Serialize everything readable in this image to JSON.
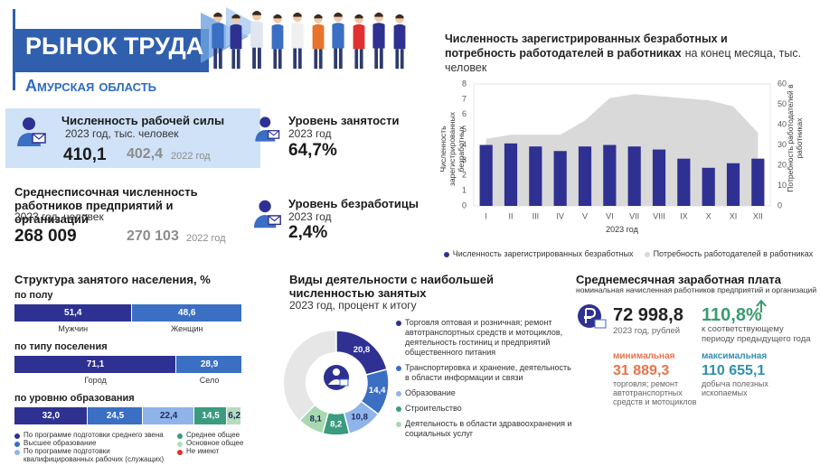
{
  "header": {
    "title": "РЫНОК ТРУДА",
    "region": "Амурская область"
  },
  "indicators": [
    {
      "title": "Численность рабочей силы",
      "subtitle": "2023 год, тыс. человек",
      "value": "410,1",
      "previous": "402,4",
      "previous_label": "2022 год"
    },
    {
      "title": "Уровень занятости",
      "subtitle": "2023 год",
      "value": "64,7%"
    },
    {
      "title": "Среднесписочная численность работников предприятий и организаций",
      "subtitle": "2023 год, человек",
      "value": "268 009",
      "previous": "270 103",
      "previous_label": "2022 год"
    },
    {
      "title": "Уровень безработицы",
      "subtitle": "2023 год",
      "value": "2,4%"
    }
  ],
  "chart_data": [
    {
      "type": "bar",
      "title": "Численность зарегистрированных безработных и потребность работодателей в работниках",
      "subtitle": "на конец месяца, тыс. человек",
      "categories": [
        "I",
        "II",
        "III",
        "IV",
        "V",
        "VI",
        "VII",
        "VIII",
        "IX",
        "X",
        "XI",
        "XII"
      ],
      "xlabel": "2023 год",
      "ylabel": "Численность зарегистрированных безработных",
      "y2label": "Потребность работодателей в работниках",
      "ylim": [
        0,
        8
      ],
      "yticks": [
        0,
        1,
        2,
        3,
        4,
        5,
        6,
        7,
        8
      ],
      "y2lim": [
        0,
        60
      ],
      "y2ticks": [
        0,
        10,
        20,
        30,
        40,
        50,
        60
      ],
      "series": [
        {
          "name": "Численность зарегистрированных безработных",
          "type": "bar",
          "color": "#2e3192",
          "values": [
            4.0,
            4.1,
            3.9,
            3.6,
            3.9,
            4.0,
            3.9,
            3.7,
            3.1,
            2.5,
            2.8,
            3.1
          ]
        },
        {
          "name": "Потребность работодателей в работниках",
          "type": "area",
          "axis": "y2",
          "color": "#d9d9d9",
          "values": [
            33,
            35,
            35,
            35,
            42,
            53,
            55,
            54,
            53,
            52,
            49,
            36
          ]
        }
      ],
      "legend": "bottom"
    },
    {
      "type": "stacked-bar",
      "orientation": "horizontal",
      "title": "Структура занятого населения, %",
      "groups": [
        {
          "label": "по полу",
          "categories": [
            "Мужчин",
            "Женщин"
          ],
          "values": [
            51.4,
            48.6
          ],
          "value_labels": [
            "51,4",
            "48,6"
          ],
          "colors": [
            "#2e3192",
            "#3a6fc4"
          ]
        },
        {
          "label": "по типу поселения",
          "categories": [
            "Город",
            "Село"
          ],
          "values": [
            71.1,
            28.9
          ],
          "value_labels": [
            "71,1",
            "28,9"
          ],
          "colors": [
            "#2e3192",
            "#3a6fc4"
          ]
        },
        {
          "label": "по уровню образования",
          "categories": [
            "По программе подготовки среднего звена",
            "Высшее образование",
            "По программе подготовки квалифицированных рабочих (служащих)",
            "Среднее общее",
            "Основное общее",
            "Не имеют"
          ],
          "values": [
            32.0,
            24.5,
            22.4,
            14.5,
            6.2,
            0.4
          ],
          "value_labels": [
            "32,0",
            "24,5",
            "22,4",
            "14,5",
            "6,2",
            null
          ],
          "colors": [
            "#2e3192",
            "#3a6fc4",
            "#8fb4ea",
            "#3b9b7f",
            "#b5dcbf",
            "#e03030"
          ],
          "legend": "bottom"
        }
      ]
    },
    {
      "type": "donut",
      "title": "Виды деятельности с наибольшей численностью занятых",
      "subtitle": "2023 год, процент к итогу",
      "categories": [
        "Торговля оптовая и розничная; ремонт автотранспортных средств и мотоциклов, деятельность гостиниц и предприятий общественного питания",
        "Транспортировка и хранение, деятельность в области информации и связи",
        "Образование",
        "Строительство",
        "Деятельность в области здравоохранения и социальных услуг"
      ],
      "values": [
        20.8,
        14.4,
        10.8,
        8.2,
        8.1
      ],
      "value_labels": [
        "20,8",
        "14,4",
        "10,8",
        "8,2",
        "8,1"
      ],
      "colors": [
        "#2e3192",
        "#3a6fc4",
        "#8fb4ea",
        "#3b9b7f",
        "#a8d8b0"
      ]
    }
  ],
  "salary": {
    "title": "Среднемесячная заработная плата",
    "subtitle": "номинальная начисленная работников предприятий и организаций",
    "value": "72 998,8",
    "value_note": "2023 год, рублей",
    "growth": "110,8%",
    "growth_note": "к соответствующему периоду предыдущего года",
    "min_label": "минимальная",
    "min_value": "31 889,3",
    "min_note": "торговля; ремонт автотранспортных средств и мотоциклов",
    "max_label": "максимальная",
    "max_value": "110 655,1",
    "max_note": "добыча полезных ископаемых"
  }
}
